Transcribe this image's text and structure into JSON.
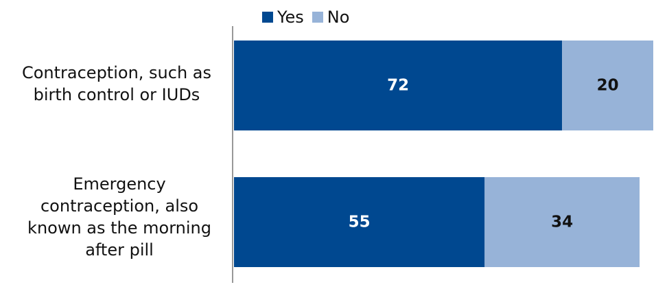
{
  "chart_data": {
    "type": "bar",
    "orientation": "horizontal",
    "stacked": true,
    "categories": [
      "Contraception, such as\nbirth control or IUDs",
      "Emergency\ncontraception, also\nknown as the morning\nafter pill"
    ],
    "series": [
      {
        "name": "Yes",
        "values": [
          72,
          55
        ],
        "color": "#004890"
      },
      {
        "name": "No",
        "values": [
          20,
          34
        ],
        "color": "#97B3D8"
      }
    ],
    "xlim": [
      0,
      92
    ],
    "legend_position": "top",
    "grid": false,
    "data_label_colors": {
      "Yes": "#ffffff",
      "No": "#111111"
    }
  }
}
